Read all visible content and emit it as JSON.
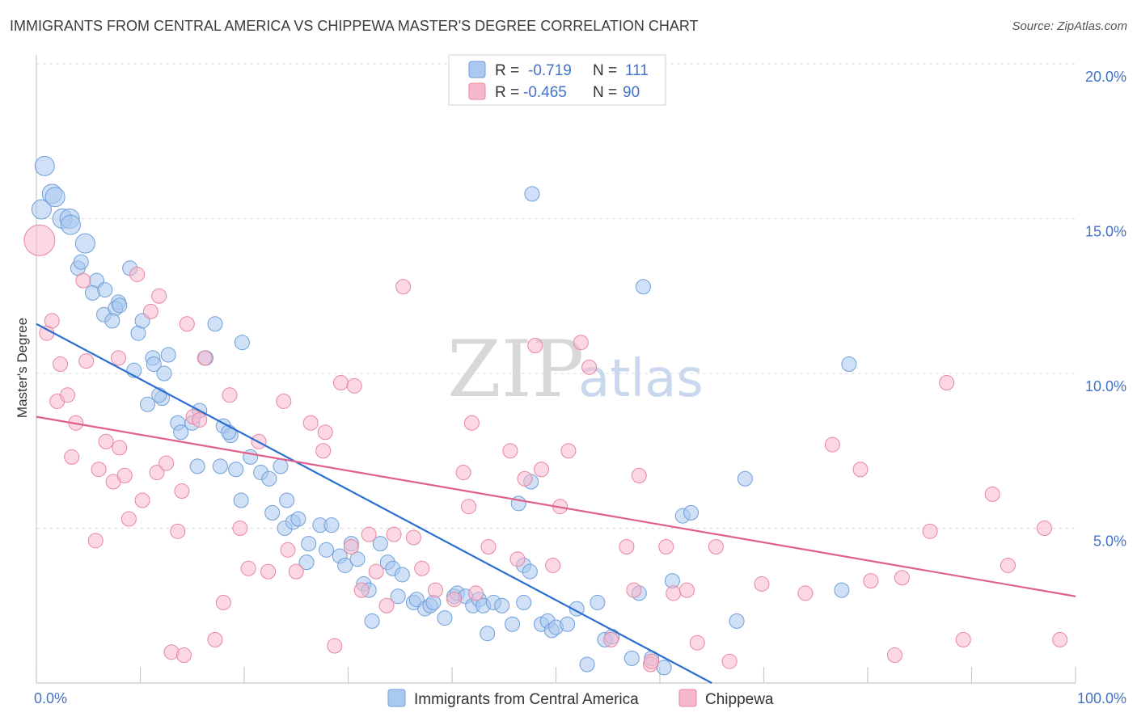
{
  "title": "IMMIGRANTS FROM CENTRAL AMERICA VS CHIPPEWA MASTER'S DEGREE CORRELATION CHART",
  "source": "Source: ZipAtlas.com",
  "watermark": {
    "zip": "ZIP",
    "atlas": "atlas"
  },
  "colors": {
    "blue_fill": "#aac8f0",
    "blue_stroke": "#6f9fd8",
    "blue_line": "#2a6fd1",
    "pink_fill": "#f7b8cc",
    "pink_stroke": "#e8869f",
    "pink_line": "#e0608a",
    "grid": "#dcdcdc",
    "axis_text": "#4472c4"
  },
  "legend": {
    "rows": [
      {
        "r_label": "R =",
        "r_value": "-0.719",
        "n_label": "N =",
        "n_value": "111"
      },
      {
        "r_label": "R =",
        "r_value": "-0.465",
        "n_label": "N =",
        "n_value": "90"
      }
    ]
  },
  "chart_data": {
    "type": "scatter",
    "title": "IMMIGRANTS FROM CENTRAL AMERICA VS CHIPPEWA MASTER'S DEGREE CORRELATION CHART",
    "xlabel": "",
    "ylabel": "Master's Degree",
    "xlim": [
      0,
      100
    ],
    "ylim": [
      0,
      20
    ],
    "y_ticks": [
      5,
      10,
      15,
      20
    ],
    "y_tick_labels": [
      "5.0%",
      "10.0%",
      "15.0%",
      "20.0%"
    ],
    "x_tick_labels": [
      "0.0%",
      "100.0%"
    ],
    "grid": "horizontal dashed",
    "legend_position": "top-center",
    "series": [
      {
        "name": "Immigrants from Central America",
        "color": "#aac8f0",
        "trend": {
          "x": [
            0,
            65
          ],
          "y": [
            11.6,
            0.0
          ]
        },
        "points": [
          [
            0.5,
            15.3
          ],
          [
            0.8,
            16.7
          ],
          [
            1.5,
            15.8
          ],
          [
            1.8,
            15.7
          ],
          [
            2.5,
            15.0
          ],
          [
            3.2,
            15.0
          ],
          [
            3.3,
            14.8
          ],
          [
            4.7,
            14.2
          ],
          [
            4.0,
            13.4
          ],
          [
            4.3,
            13.6
          ],
          [
            5.8,
            13.0
          ],
          [
            5.4,
            12.6
          ],
          [
            6.6,
            12.7
          ],
          [
            7.9,
            12.3
          ],
          [
            6.5,
            11.9
          ],
          [
            7.6,
            12.1
          ],
          [
            8.0,
            12.2
          ],
          [
            7.3,
            11.7
          ],
          [
            9.0,
            13.4
          ],
          [
            9.8,
            11.3
          ],
          [
            10.2,
            11.7
          ],
          [
            11.2,
            10.5
          ],
          [
            12.7,
            10.6
          ],
          [
            11.3,
            10.3
          ],
          [
            12.3,
            10.0
          ],
          [
            9.4,
            10.1
          ],
          [
            10.7,
            9.0
          ],
          [
            12.1,
            9.2
          ],
          [
            11.8,
            9.3
          ],
          [
            13.6,
            8.4
          ],
          [
            13.9,
            8.1
          ],
          [
            15.0,
            8.4
          ],
          [
            15.7,
            8.8
          ],
          [
            16.3,
            10.5
          ],
          [
            17.2,
            11.6
          ],
          [
            18.0,
            8.3
          ],
          [
            18.7,
            8.0
          ],
          [
            19.8,
            11.0
          ],
          [
            18.5,
            8.1
          ],
          [
            15.5,
            7.0
          ],
          [
            17.7,
            7.0
          ],
          [
            19.2,
            6.9
          ],
          [
            20.6,
            7.3
          ],
          [
            21.6,
            6.8
          ],
          [
            22.4,
            6.6
          ],
          [
            23.5,
            7.0
          ],
          [
            19.7,
            5.9
          ],
          [
            22.7,
            5.5
          ],
          [
            23.9,
            5.0
          ],
          [
            24.1,
            5.9
          ],
          [
            24.7,
            5.2
          ],
          [
            25.2,
            5.3
          ],
          [
            26.2,
            4.5
          ],
          [
            26.0,
            3.9
          ],
          [
            27.3,
            5.1
          ],
          [
            27.9,
            4.3
          ],
          [
            28.4,
            5.1
          ],
          [
            29.2,
            4.1
          ],
          [
            29.7,
            3.8
          ],
          [
            30.3,
            4.5
          ],
          [
            30.9,
            4.0
          ],
          [
            31.5,
            3.2
          ],
          [
            32.0,
            3.0
          ],
          [
            32.3,
            2.0
          ],
          [
            33.1,
            4.5
          ],
          [
            33.8,
            3.9
          ],
          [
            34.3,
            3.7
          ],
          [
            34.8,
            2.8
          ],
          [
            35.2,
            3.5
          ],
          [
            36.3,
            2.6
          ],
          [
            36.6,
            2.7
          ],
          [
            37.4,
            2.4
          ],
          [
            37.9,
            2.5
          ],
          [
            38.2,
            2.6
          ],
          [
            39.3,
            2.1
          ],
          [
            40.2,
            2.8
          ],
          [
            40.5,
            2.9
          ],
          [
            41.3,
            2.8
          ],
          [
            42.0,
            2.5
          ],
          [
            42.6,
            2.7
          ],
          [
            43.0,
            2.5
          ],
          [
            43.4,
            1.6
          ],
          [
            44.0,
            2.6
          ],
          [
            44.8,
            2.5
          ],
          [
            45.8,
            1.9
          ],
          [
            46.4,
            5.8
          ],
          [
            46.9,
            3.8
          ],
          [
            46.9,
            2.6
          ],
          [
            47.5,
            3.6
          ],
          [
            48.6,
            1.9
          ],
          [
            49.2,
            2.0
          ],
          [
            49.6,
            1.7
          ],
          [
            50.0,
            1.8
          ],
          [
            51.1,
            1.9
          ],
          [
            52.0,
            2.4
          ],
          [
            54.0,
            2.6
          ],
          [
            53.0,
            0.6
          ],
          [
            54.7,
            1.4
          ],
          [
            55.4,
            1.5
          ],
          [
            57.3,
            0.8
          ],
          [
            58.0,
            2.9
          ],
          [
            58.4,
            12.8
          ],
          [
            59.2,
            0.8
          ],
          [
            60.4,
            0.5
          ],
          [
            61.2,
            3.3
          ],
          [
            62.2,
            5.4
          ],
          [
            63.0,
            5.5
          ],
          [
            67.4,
            2.0
          ],
          [
            68.2,
            6.6
          ],
          [
            78.2,
            10.3
          ],
          [
            77.5,
            3.0
          ],
          [
            47.7,
            15.8
          ],
          [
            47.6,
            6.5
          ]
        ]
      },
      {
        "name": "Chippewa",
        "color": "#f7b8cc",
        "trend": {
          "x": [
            0,
            100
          ],
          "y": [
            8.6,
            2.8
          ]
        },
        "points": [
          [
            0.3,
            14.3
          ],
          [
            1.0,
            11.3
          ],
          [
            1.5,
            11.7
          ],
          [
            2.0,
            9.1
          ],
          [
            2.3,
            10.3
          ],
          [
            3.0,
            9.3
          ],
          [
            3.4,
            7.3
          ],
          [
            3.8,
            8.4
          ],
          [
            4.5,
            13.0
          ],
          [
            4.8,
            10.4
          ],
          [
            5.7,
            4.6
          ],
          [
            6.0,
            6.9
          ],
          [
            6.7,
            7.8
          ],
          [
            7.4,
            6.5
          ],
          [
            7.9,
            10.5
          ],
          [
            8.0,
            7.6
          ],
          [
            8.5,
            6.7
          ],
          [
            8.9,
            5.3
          ],
          [
            9.7,
            13.2
          ],
          [
            10.2,
            5.9
          ],
          [
            11.0,
            12.0
          ],
          [
            11.6,
            6.8
          ],
          [
            11.8,
            12.5
          ],
          [
            12.5,
            7.1
          ],
          [
            13.0,
            1.0
          ],
          [
            13.6,
            4.9
          ],
          [
            14.0,
            6.2
          ],
          [
            14.5,
            11.6
          ],
          [
            15.1,
            8.6
          ],
          [
            15.7,
            8.5
          ],
          [
            16.2,
            10.5
          ],
          [
            17.2,
            1.4
          ],
          [
            18.0,
            2.6
          ],
          [
            18.6,
            9.3
          ],
          [
            19.6,
            5.0
          ],
          [
            20.4,
            3.7
          ],
          [
            21.4,
            7.8
          ],
          [
            22.3,
            3.6
          ],
          [
            23.8,
            9.1
          ],
          [
            24.2,
            4.3
          ],
          [
            25.0,
            3.6
          ],
          [
            26.4,
            8.4
          ],
          [
            27.6,
            7.5
          ],
          [
            27.8,
            8.1
          ],
          [
            28.7,
            1.2
          ],
          [
            29.3,
            9.7
          ],
          [
            30.3,
            4.4
          ],
          [
            31.3,
            3.0
          ],
          [
            32.0,
            4.8
          ],
          [
            32.7,
            3.6
          ],
          [
            33.7,
            2.5
          ],
          [
            34.4,
            4.8
          ],
          [
            35.3,
            12.8
          ],
          [
            37.1,
            3.7
          ],
          [
            38.4,
            3.0
          ],
          [
            40.2,
            2.7
          ],
          [
            41.1,
            6.8
          ],
          [
            41.6,
            5.7
          ],
          [
            41.9,
            8.4
          ],
          [
            42.3,
            2.9
          ],
          [
            43.5,
            4.4
          ],
          [
            45.6,
            7.5
          ],
          [
            46.3,
            4.0
          ],
          [
            47.0,
            6.6
          ],
          [
            48.0,
            10.9
          ],
          [
            48.6,
            6.9
          ],
          [
            49.7,
            3.8
          ],
          [
            50.4,
            5.7
          ],
          [
            51.2,
            7.5
          ],
          [
            52.4,
            11.0
          ],
          [
            53.2,
            10.2
          ],
          [
            55.3,
            1.4
          ],
          [
            56.8,
            4.4
          ],
          [
            57.5,
            3.0
          ],
          [
            58.0,
            6.7
          ],
          [
            59.1,
            0.6
          ],
          [
            60.6,
            4.4
          ],
          [
            61.3,
            2.9
          ],
          [
            62.6,
            3.0
          ],
          [
            63.6,
            1.3
          ],
          [
            65.4,
            4.4
          ],
          [
            66.7,
            0.7
          ],
          [
            69.8,
            3.2
          ],
          [
            74.0,
            2.9
          ],
          [
            76.6,
            7.7
          ],
          [
            79.3,
            6.9
          ],
          [
            80.3,
            3.3
          ],
          [
            82.6,
            0.9
          ],
          [
            83.3,
            3.4
          ],
          [
            86.0,
            4.9
          ],
          [
            87.6,
            9.7
          ],
          [
            89.2,
            1.4
          ],
          [
            92.0,
            6.1
          ],
          [
            93.5,
            3.8
          ],
          [
            97.0,
            5.0
          ],
          [
            98.5,
            1.4
          ],
          [
            36.3,
            4.7
          ],
          [
            59.2,
            0.7
          ],
          [
            30.6,
            9.6
          ],
          [
            14.2,
            0.9
          ]
        ]
      }
    ]
  }
}
